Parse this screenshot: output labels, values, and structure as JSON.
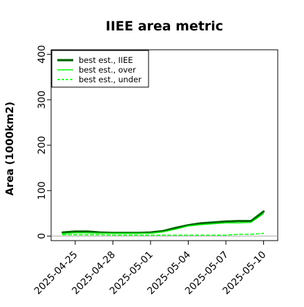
{
  "chart_data": {
    "type": "line",
    "title": "IIEE area metric",
    "xlabel": "",
    "ylabel": "Area (1000km2)",
    "x": [
      "2025-04-24",
      "2025-04-25",
      "2025-04-26",
      "2025-04-27",
      "2025-04-28",
      "2025-04-29",
      "2025-04-30",
      "2025-05-01",
      "2025-05-02",
      "2025-05-03",
      "2025-05-04",
      "2025-05-05",
      "2025-05-06",
      "2025-05-07",
      "2025-05-08",
      "2025-05-09",
      "2025-05-10"
    ],
    "xlim": [
      "2025-04-23T02:00",
      "2025-05-11T03:00"
    ],
    "x_ticks": [
      "2025-04-25",
      "2025-04-28",
      "2025-05-01",
      "2025-05-04",
      "2025-05-07",
      "2025-05-10"
    ],
    "ylim": [
      -10,
      410
    ],
    "y_ticks": [
      0,
      100,
      200,
      300,
      400
    ],
    "grid": false,
    "legend_position": "top-left",
    "series": [
      {
        "name": "best est., IIEE",
        "color": "#006400",
        "style": "solid",
        "width": 3.2,
        "values": [
          8,
          10,
          10,
          8,
          7,
          7,
          7,
          8,
          11,
          18,
          24,
          28,
          30,
          32,
          33,
          33,
          54
        ]
      },
      {
        "name": "best est., over",
        "color": "#00ff00",
        "style": "solid",
        "width": 1.4,
        "values": [
          5,
          7,
          7,
          6,
          6,
          6,
          6,
          6,
          9,
          15,
          22,
          25,
          27,
          29,
          29,
          30,
          49
        ]
      },
      {
        "name": "best est., under",
        "color": "#00ff00",
        "style": "dashed",
        "width": 1.4,
        "values": [
          3,
          3,
          3,
          3,
          2,
          2,
          2,
          2,
          2,
          2,
          2,
          2,
          2,
          2,
          4,
          4,
          6
        ]
      }
    ]
  }
}
